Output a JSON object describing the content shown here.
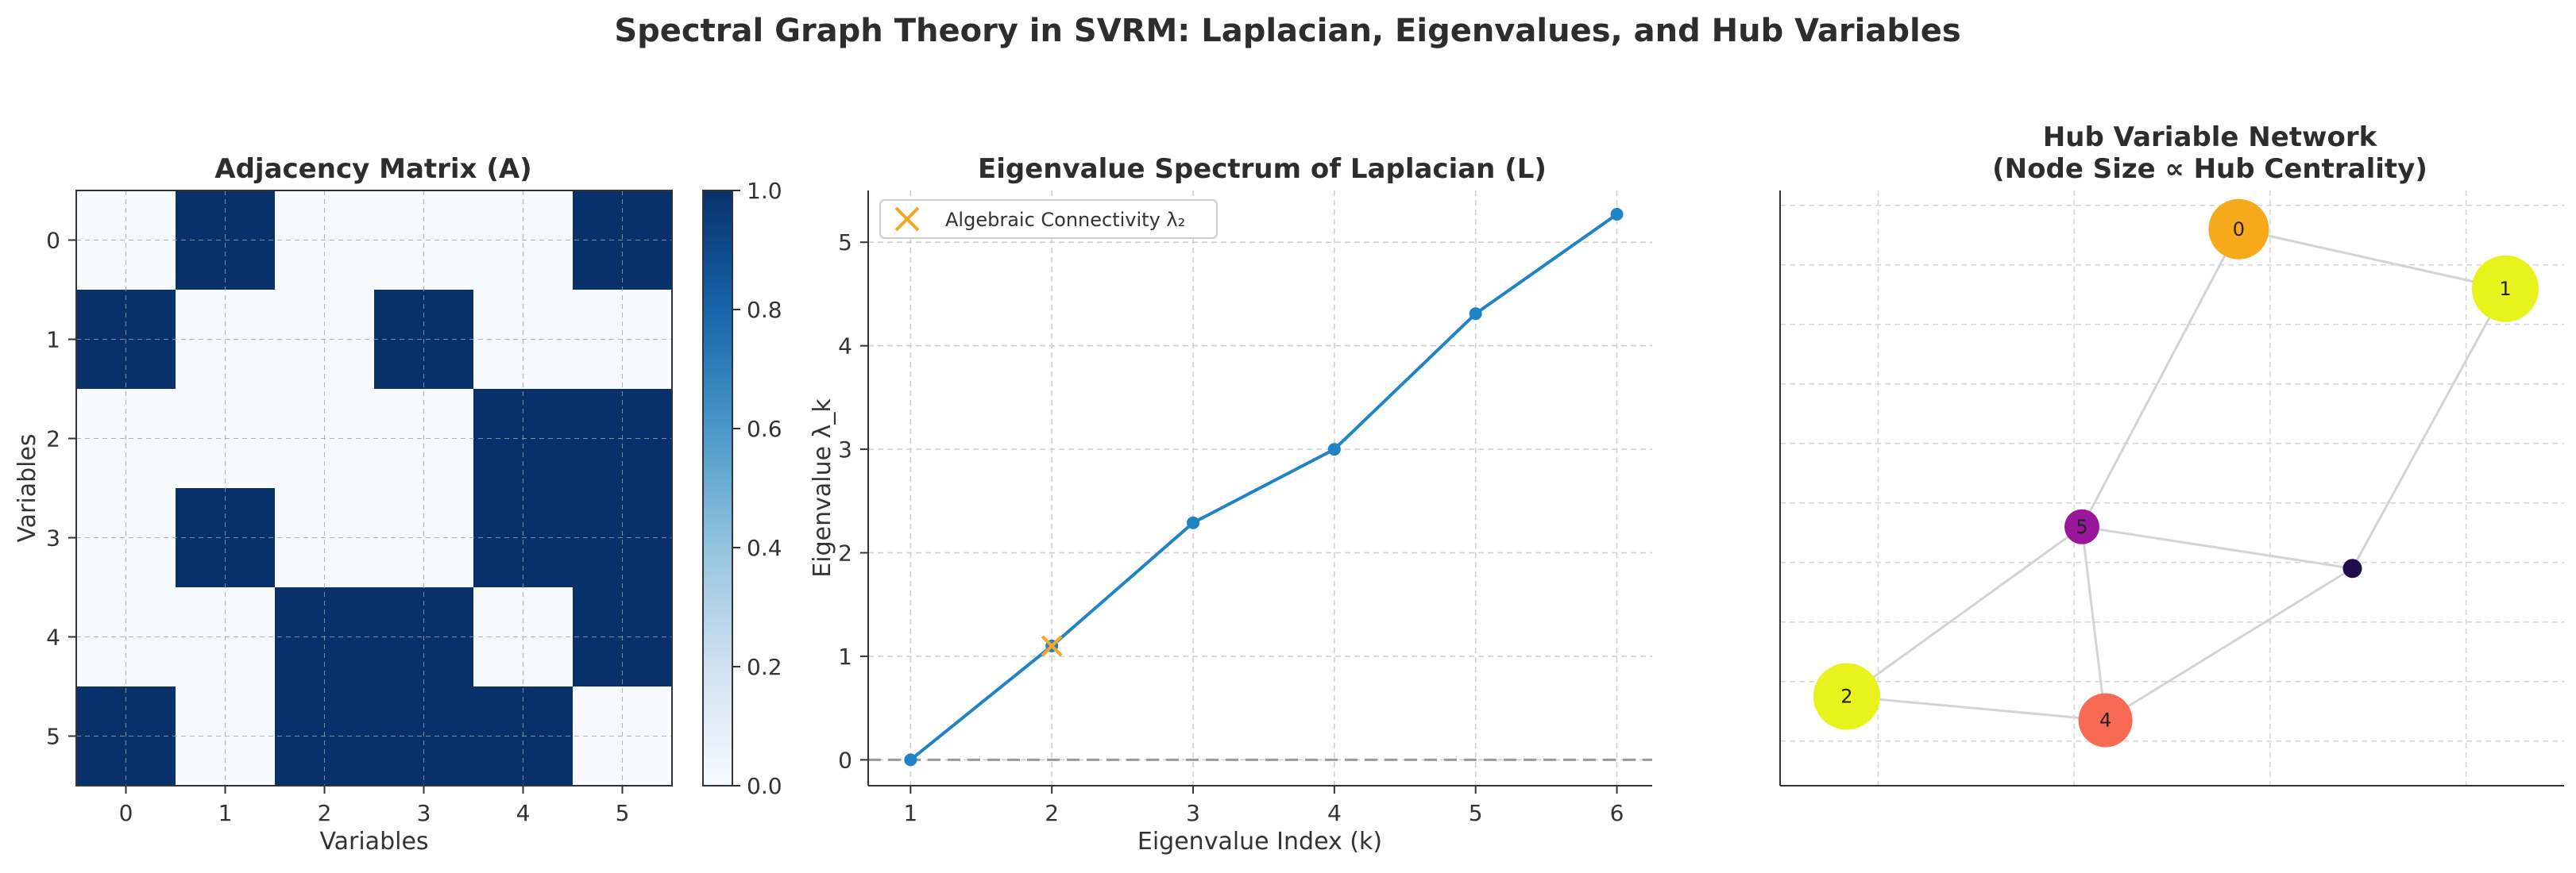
{
  "figure": {
    "title": "Spectral Graph Theory in SVRM: Laplacian, Eigenvalues, and Hub Variables"
  },
  "chart_data": [
    {
      "type": "heatmap",
      "title": "Adjacency Matrix (A)",
      "xlabel": "Variables",
      "ylabel": "Variables",
      "x_ticks": [
        "0",
        "1",
        "2",
        "3",
        "4",
        "5"
      ],
      "y_ticks": [
        "0",
        "1",
        "2",
        "3",
        "4",
        "5"
      ],
      "matrix": [
        [
          0,
          1,
          0,
          0,
          0,
          1
        ],
        [
          1,
          0,
          0,
          1,
          0,
          0
        ],
        [
          0,
          0,
          0,
          0,
          1,
          1
        ],
        [
          0,
          1,
          0,
          0,
          1,
          1
        ],
        [
          0,
          0,
          1,
          1,
          0,
          1
        ],
        [
          1,
          0,
          1,
          1,
          1,
          0
        ]
      ],
      "colorbar": {
        "range": [
          0.0,
          1.0
        ],
        "ticks": [
          "0.0",
          "0.2",
          "0.4",
          "0.6",
          "0.8",
          "1.0"
        ],
        "colors": {
          "low": "#f7fbff",
          "high": "#08306b"
        }
      },
      "grid": true
    },
    {
      "type": "line",
      "title": "Eigenvalue Spectrum of Laplacian (L)",
      "xlabel": "Eigenvalue Index (k)",
      "ylabel": "Eigenvalue λ_k",
      "x": [
        1,
        2,
        3,
        4,
        5,
        6
      ],
      "y": [
        0.0,
        1.1,
        2.29,
        3.0,
        4.31,
        5.27
      ],
      "xlim": [
        0.7,
        6.25
      ],
      "ylim": [
        -0.25,
        5.5
      ],
      "x_ticks": [
        "1",
        "2",
        "3",
        "4",
        "5",
        "6"
      ],
      "y_ticks": [
        "0",
        "1",
        "2",
        "3",
        "4",
        "5"
      ],
      "reference_line": {
        "y": 0,
        "style": "dashed",
        "color": "#999999"
      },
      "highlight": {
        "label": "Algebraic Connectivity λ₂",
        "x": 2,
        "y": 1.1,
        "marker": "x",
        "color": "#f5a623"
      },
      "legend": "top-left",
      "line_color": "#1f84c6",
      "grid": true
    },
    {
      "type": "network",
      "title_line1": "Hub Variable Network",
      "title_line2": "(Node Size ∝ Hub Centrality)",
      "xlim": [
        -1.0,
        1.0
      ],
      "ylim": [
        -0.95,
        1.05
      ],
      "nodes": [
        {
          "id": "0",
          "label": "0",
          "x": 0.17,
          "y": 0.92,
          "size": 19,
          "color": "#f8a81b"
        },
        {
          "id": "1",
          "label": "1",
          "x": 0.85,
          "y": 0.72,
          "size": 21,
          "color": "#e8f21c"
        },
        {
          "id": "2",
          "label": "2",
          "x": -0.83,
          "y": -0.65,
          "size": 21,
          "color": "#e8f21c"
        },
        {
          "id": "3",
          "label": "",
          "x": 0.46,
          "y": -0.22,
          "size": 6,
          "color": "#1f0c48"
        },
        {
          "id": "4",
          "label": "4",
          "x": -0.17,
          "y": -0.73,
          "size": 17,
          "color": "#f96a55"
        },
        {
          "id": "5",
          "label": "5",
          "x": -0.23,
          "y": -0.08,
          "size": 11,
          "color": "#9a179b"
        }
      ],
      "edges": [
        [
          "0",
          "1"
        ],
        [
          "0",
          "5"
        ],
        [
          "1",
          "3"
        ],
        [
          "5",
          "3"
        ],
        [
          "5",
          "2"
        ],
        [
          "5",
          "4"
        ],
        [
          "2",
          "4"
        ],
        [
          "4",
          "3"
        ]
      ],
      "edge_color": "#d4d4d4",
      "grid": true
    }
  ]
}
